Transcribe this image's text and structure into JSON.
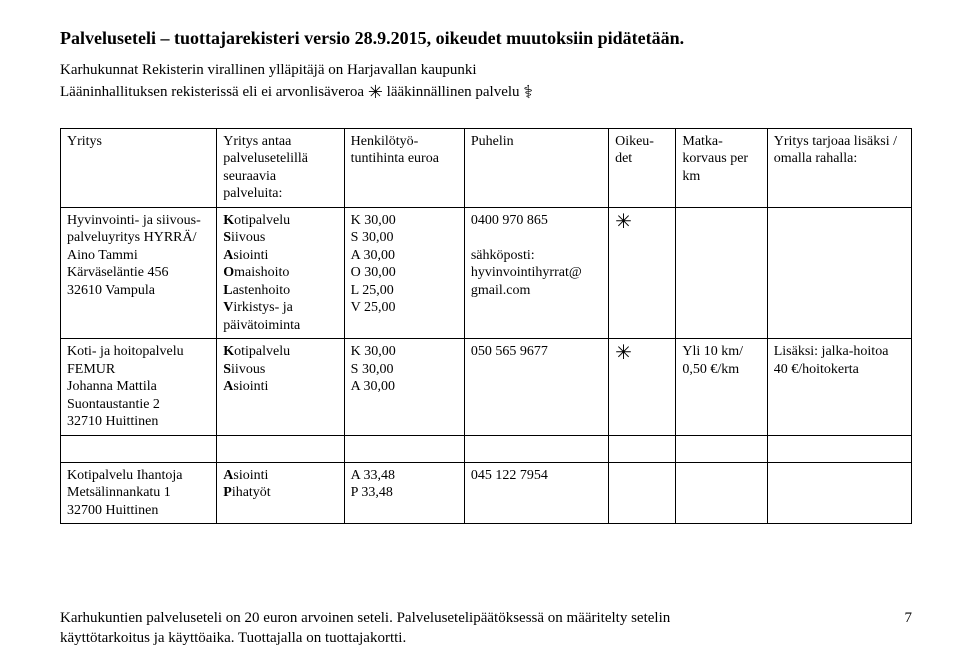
{
  "title": "Palveluseteli – tuottajarekisteri versio 28.9.2015, oikeudet muutoksiin pidätetään.",
  "subtext_line1": "Karhukunnat Rekisterin virallinen ylläpitäjä on Harjavallan kaupunki",
  "subtext_line2a": "Lääninhallituksen rekisterissä eli ei arvonlisäveroa ",
  "subtext_line2b": "  lääkinnällinen palvelu ",
  "star": "✳",
  "medical": "⚕",
  "columns": [
    "Yritys",
    "Yritys antaa palvelusetelillä seuraavia palveluita:",
    "Henkilötyö-tuntihinta euroa",
    "Puhelin",
    "Oikeu-det",
    "Matka-korvaus per km",
    "Yritys tarjoaa lisäksi / omalla rahalla:"
  ],
  "rows": [
    {
      "company": [
        "Hyvinvointi- ja siivous-",
        "palveluyritys HYRRÄ/",
        "Aino Tammi",
        "Kärväseläntie 456",
        "32610 Vampula"
      ],
      "services": [
        [
          "K",
          "otipalvelu"
        ],
        [
          "S",
          "iivous"
        ],
        [
          "A",
          "siointi"
        ],
        [
          "O",
          "maishoito"
        ],
        [
          "L",
          "astenhoito"
        ],
        [
          "V",
          "irkistys- ja"
        ],
        [
          "",
          "päivätoiminta"
        ]
      ],
      "prices": [
        "K 30,00",
        "S 30,00",
        "A 30,00",
        "O 30,00",
        "L 25,00",
        "V 25,00"
      ],
      "phone": [
        "0400 970 865",
        "",
        "sähköposti:",
        "hyvinvointihyrrat@",
        "gmail.com"
      ],
      "rights": "✳",
      "km": "",
      "extra": ""
    },
    {
      "company": [
        "Koti- ja hoitopalvelu",
        "FEMUR",
        "Johanna Mattila",
        "Suontaustantie 2",
        "32710 Huittinen"
      ],
      "services": [
        [
          "K",
          "otipalvelu"
        ],
        [
          "S",
          "iivous"
        ],
        [
          "A",
          "siointi"
        ]
      ],
      "prices": [
        "K 30,00",
        "S 30,00",
        "A 30,00"
      ],
      "phone": [
        "050 565 9677"
      ],
      "rights": "✳",
      "km": "Yli 10 km/ 0,50 €/km",
      "extra": "Lisäksi: jalka-hoitoa 40 €/hoitokerta"
    },
    {
      "company": [
        "Kotipalvelu Ihantoja",
        "Metsälinnankatu 1",
        "32700 Huittinen"
      ],
      "services": [
        [
          "A",
          "siointi"
        ],
        [
          "P",
          "ihatyöt"
        ]
      ],
      "prices": [
        "A 33,48",
        "P 33,48"
      ],
      "phone": [
        "045 122 7954"
      ],
      "rights": "",
      "km": "",
      "extra": ""
    }
  ],
  "footer_line1": "Karhukuntien palveluseteli on 20 euron arvoinen seteli. Palvelusetelipäätöksessä on määritelty setelin",
  "footer_line2": "käyttötarkoitus ja käyttöaika. Tuottajalla on tuottajakortti.",
  "page_number": "7"
}
